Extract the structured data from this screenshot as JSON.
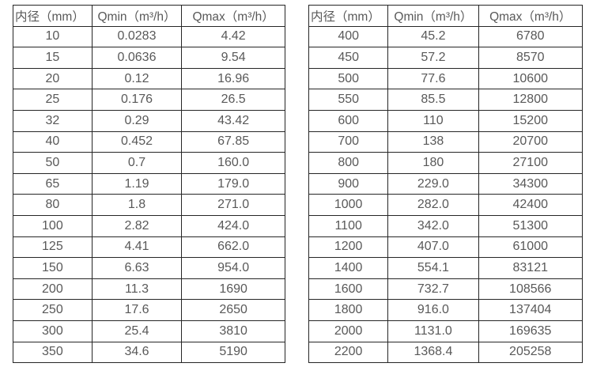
{
  "page": {
    "background": "#ffffff",
    "border_color": "#262626",
    "text_color": "#595959"
  },
  "chart_data": [
    {
      "type": "table",
      "name": "flow-table-small-diameters",
      "columns": [
        "内径（mm）",
        "Qmin（m³/h）",
        "Qmax（m³/h）"
      ],
      "rows": [
        [
          "10",
          "0.0283",
          "4.42"
        ],
        [
          "15",
          "0.0636",
          "9.54"
        ],
        [
          "20",
          "0.12",
          "16.96"
        ],
        [
          "25",
          "0.176",
          "26.5"
        ],
        [
          "32",
          "0.29",
          "43.42"
        ],
        [
          "40",
          "0.452",
          "67.85"
        ],
        [
          "50",
          "0.7",
          "160.0"
        ],
        [
          "65",
          "1.19",
          "179.0"
        ],
        [
          "80",
          "1.8",
          "271.0"
        ],
        [
          "100",
          "2.82",
          "424.0"
        ],
        [
          "125",
          "4.41",
          "662.0"
        ],
        [
          "150",
          "6.63",
          "954.0"
        ],
        [
          "200",
          "11.3",
          "1690"
        ],
        [
          "250",
          "17.6",
          "2650"
        ],
        [
          "300",
          "25.4",
          "3810"
        ],
        [
          "350",
          "34.6",
          "5190"
        ]
      ]
    },
    {
      "type": "table",
      "name": "flow-table-large-diameters",
      "columns": [
        "内径（mm）",
        "Qmin（m³/h）",
        "Qmax（m³/h）"
      ],
      "rows": [
        [
          "400",
          "45.2",
          "6780"
        ],
        [
          "450",
          "57.2",
          "8570"
        ],
        [
          "500",
          "77.6",
          "10600"
        ],
        [
          "550",
          "85.5",
          "12800"
        ],
        [
          "600",
          "110",
          "15200"
        ],
        [
          "700",
          "138",
          "20700"
        ],
        [
          "800",
          "180",
          "27100"
        ],
        [
          "900",
          "229.0",
          "34300"
        ],
        [
          "1000",
          "282.0",
          "42400"
        ],
        [
          "1100",
          "342.0",
          "51300"
        ],
        [
          "1200",
          "407.0",
          "61000"
        ],
        [
          "1400",
          "554.1",
          "83121"
        ],
        [
          "1600",
          "732.7",
          "108566"
        ],
        [
          "1800",
          "916.0",
          "137404"
        ],
        [
          "2000",
          "1131.0",
          "169635"
        ],
        [
          "2200",
          "1368.4",
          "205258"
        ]
      ]
    }
  ]
}
